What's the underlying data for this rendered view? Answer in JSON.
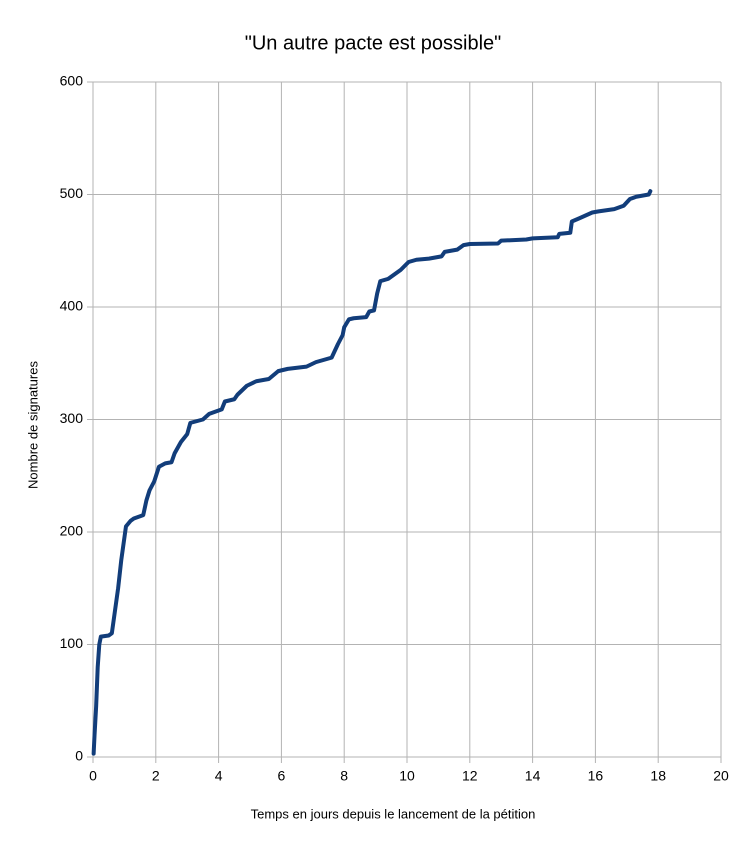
{
  "chart_data": {
    "type": "line",
    "title": "\"Un autre pacte est possible\"",
    "x_label": "Temps en jours depuis le lancement de la pétition",
    "y_label": "Nombre de signatures",
    "xlim": [
      0,
      20
    ],
    "xticks": [
      0,
      2,
      4,
      6,
      8,
      10,
      12,
      14,
      16,
      18,
      20
    ],
    "ylim": [
      0,
      600
    ],
    "yticks": [
      0,
      100,
      200,
      300,
      400,
      500,
      600
    ],
    "grid": true,
    "x": [
      0.02,
      0.05,
      0.1,
      0.15,
      0.2,
      0.25,
      0.5,
      0.6,
      0.7,
      0.8,
      0.9,
      1.0,
      1.05,
      1.2,
      1.3,
      1.6,
      1.7,
      1.8,
      1.95,
      2.1,
      2.3,
      2.5,
      2.6,
      2.8,
      3.0,
      3.1,
      3.5,
      3.7,
      4.1,
      4.2,
      4.5,
      4.6,
      4.9,
      5.2,
      5.6,
      5.9,
      6.2,
      6.8,
      7.1,
      7.6,
      7.8,
      7.95,
      8.0,
      8.15,
      8.3,
      8.7,
      8.8,
      8.95,
      9.05,
      9.15,
      9.4,
      9.5,
      9.8,
      10.05,
      10.3,
      10.7,
      11.1,
      11.2,
      11.6,
      11.8,
      12.0,
      12.9,
      13.0,
      13.8,
      14.0,
      14.8,
      14.85,
      15.2,
      15.25,
      15.5,
      15.9,
      16.1,
      16.6,
      16.9,
      17.1,
      17.3,
      17.7,
      17.75
    ],
    "series": [
      {
        "name": "Nombre de signatures",
        "color": "#123d7a",
        "values": [
          3,
          20,
          45,
          80,
          100,
          107,
          108,
          110,
          130,
          150,
          175,
          195,
          205,
          210,
          212,
          215,
          228,
          237,
          245,
          258,
          261,
          262,
          270,
          280,
          287,
          297,
          300,
          305,
          309,
          316,
          318,
          322,
          330,
          334,
          336,
          343,
          345,
          347,
          351,
          355,
          367,
          375,
          382,
          389,
          390,
          391,
          396,
          397,
          412,
          423,
          425,
          427,
          433,
          440,
          442,
          443,
          445,
          449,
          451,
          455,
          456,
          456.5,
          459,
          460,
          461,
          462,
          465,
          466,
          476,
          479,
          484,
          485,
          487,
          490,
          496,
          498,
          500,
          503
        ]
      }
    ]
  }
}
